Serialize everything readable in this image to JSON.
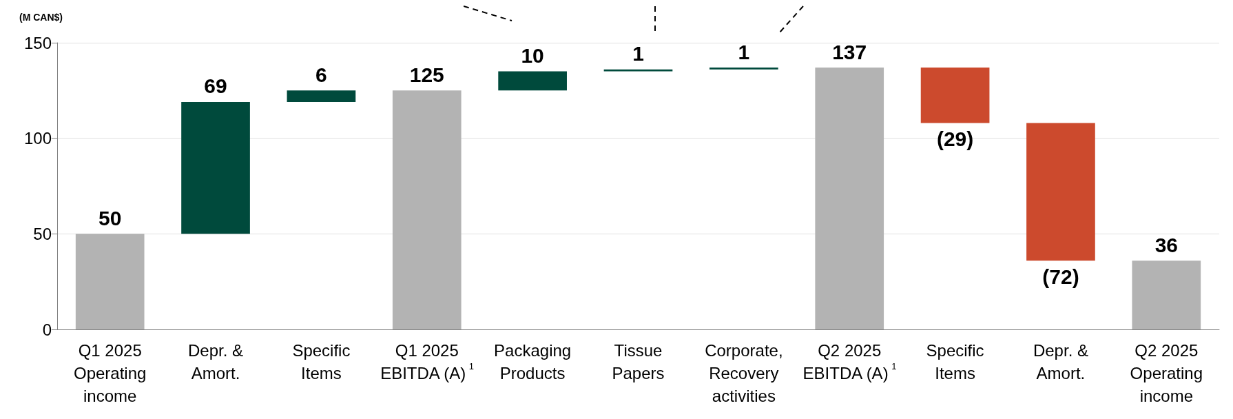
{
  "chart_data": {
    "type": "bar",
    "ylabel": "(M CAN$)",
    "categories": [
      "Q1 2025\nOperating\nincome",
      "Depr. &\nAmort.",
      "Specific\nItems",
      "Q1 2025\nEBITDA (A)$^{1}$",
      "Packaging\nProducts",
      "Tissue\nPapers",
      "Corporate,\nRecovery\nactivities",
      "Q2 2025\nEBITDA (A)$^{1}$",
      "Specific\nItems",
      "Depr. &\nAmort.",
      "Q2 2025\nOperating\nincome"
    ],
    "values": [
      50,
      69,
      6,
      125,
      10,
      1,
      1,
      137,
      -29,
      -72,
      36
    ],
    "base": [
      0,
      50,
      119,
      0,
      125,
      135,
      136,
      0,
      137,
      108,
      0
    ],
    "colors": [
      "#b3b3b3",
      "#004a3c",
      "#004a3c",
      "#b3b3b3",
      "#004a3c",
      "#004a3c",
      "#004a3c",
      "#b3b3b3",
      "#cc4a2d",
      "#cc4a2d",
      "#b3b3b3"
    ],
    "value_labels": [
      "50",
      "69",
      "6",
      "125",
      "10",
      "1",
      "1",
      "137",
      "(29)",
      "(72)",
      "36"
    ],
    "ylim": [
      0,
      150
    ],
    "yticks": [
      0,
      50,
      100,
      150
    ],
    "grid": "y"
  }
}
